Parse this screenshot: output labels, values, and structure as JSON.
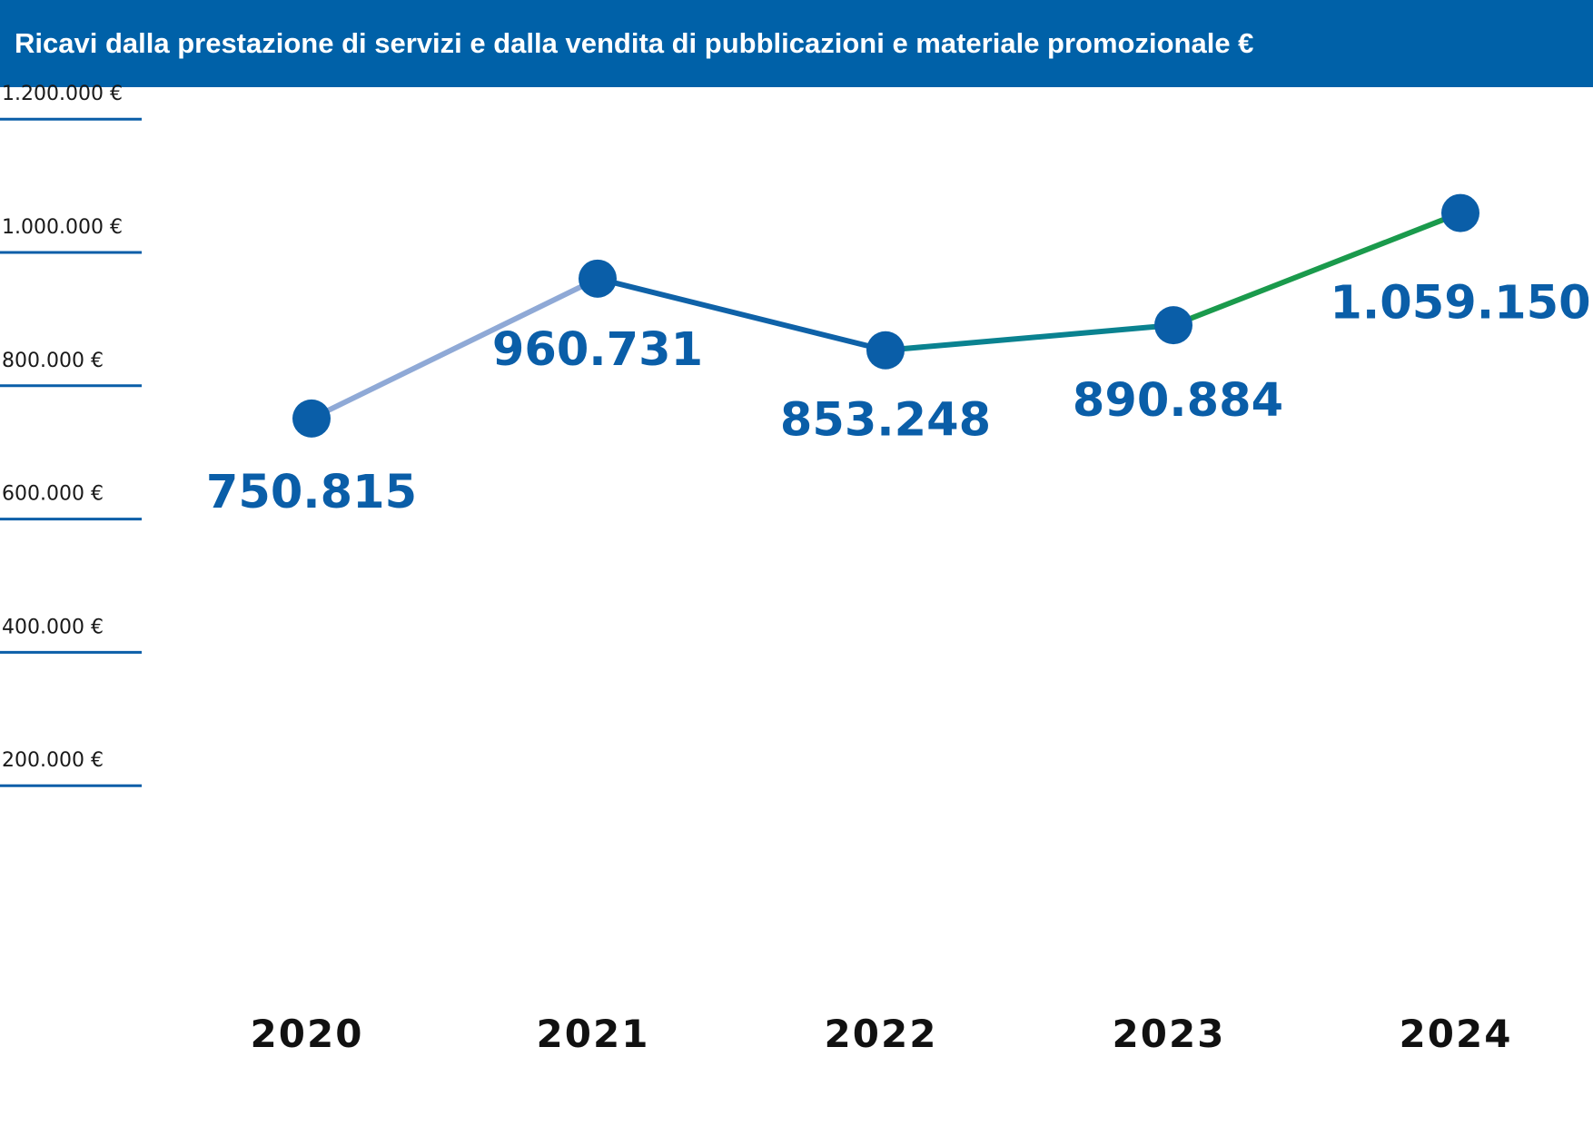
{
  "chart_data": {
    "type": "line",
    "title": "Ricavi dalla prestazione di servizi e dalla vendita di pubblicazioni e materiale promozionale €",
    "categories": [
      "2020",
      "2021",
      "2022",
      "2023",
      "2024"
    ],
    "values": [
      750815,
      960731,
      853248,
      890884,
      1059150
    ],
    "value_labels": [
      "750.815",
      "960.731",
      "853.248",
      "890.884",
      "1.059.150"
    ],
    "y_ticks": [
      200000,
      400000,
      600000,
      800000,
      1000000,
      1200000
    ],
    "y_tick_labels": [
      "200.000 €",
      "400.000 €",
      "600.000 €",
      "800.000 €",
      "1.000.000 €",
      "1.200.000 €"
    ],
    "ylim": [
      0,
      1200000
    ],
    "grid": false,
    "colors": {
      "title_bg": "#0061a8",
      "point": "#0a5ea8",
      "label": "#0a5ea8",
      "tick_line": "#0a5ea8",
      "segments": [
        "#8fa9d6",
        "#4c78b8",
        "#0f62a8",
        "#0a8290",
        "#1a9a4c"
      ]
    }
  }
}
